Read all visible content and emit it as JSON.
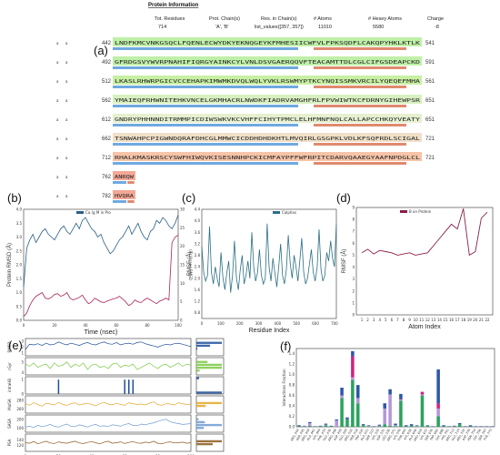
{
  "panel_labels": {
    "a": "(a)",
    "b": "(b)",
    "c": "(c)",
    "d": "(d)",
    "e": "(e)",
    "f": "(f)"
  },
  "protein_info": {
    "title": "Protein Information",
    "headers": [
      "Tot. Residues",
      "Prot. Chain(s)",
      "Res. in Chain(s)",
      "# Atoms",
      "# Heavy Atoms",
      "Charge"
    ],
    "values": [
      "714",
      "'A', 'B'",
      "list_values([357, 357])",
      "11010",
      "5580",
      "-8"
    ],
    "row_start_numbers": [
      "442",
      "492",
      "512",
      "562",
      "612",
      "662",
      "712",
      "762",
      "782"
    ],
    "row_end_numbers": [
      "541",
      "591",
      "561",
      "651",
      "651",
      "721",
      "721",
      "781",
      "781"
    ],
    "row_prefix": "a"
  },
  "chart_data": [
    {
      "id": "b",
      "type": "line",
      "legend": "Cα /g M in Pro",
      "xlabel": "Time (nsec)",
      "ylabel": "Protein RMSD (Å)",
      "ylabel_right": "(Å) Ligand RMSD",
      "xlim": [
        0,
        100
      ],
      "ylim": [
        0.0,
        4.0
      ],
      "ylim_right": [
        0,
        30
      ],
      "xticks": [
        "0",
        "20",
        "40",
        "60",
        "80",
        "100"
      ],
      "yticks": [
        "0.0",
        "0.5",
        "1.0",
        "1.5",
        "2.0",
        "2.5",
        "3.0",
        "3.5",
        "4.0"
      ],
      "yticks_right": [
        "0",
        "5",
        "10",
        "15",
        "20",
        "25",
        "30"
      ],
      "series": [
        {
          "values": [
            1.2,
            2.6,
            2.9,
            3.1,
            2.8,
            3.0,
            3.2,
            3.3,
            3.1,
            3.0,
            2.9,
            3.1,
            3.3,
            3.4,
            3.2,
            3.1,
            3.3,
            3.5,
            3.3,
            3.6,
            3.7,
            3.5,
            3.3,
            3.2,
            3.0,
            3.1,
            2.8,
            2.6,
            2.4,
            2.5,
            2.7,
            2.9,
            3.0,
            3.2,
            3.4,
            3.1,
            3.3,
            3.5,
            3.2,
            3.0,
            2.9,
            3.2,
            3.3,
            3.6,
            3.5,
            3.7,
            3.6,
            3.4,
            3.3,
            3.5,
            3.8
          ]
        },
        {
          "values": [
            1.0,
            2.0,
            4.0,
            5.5,
            6.5,
            7.0,
            7.5,
            6.0,
            5.8,
            6.2,
            7.0,
            7.2,
            6.5,
            6.8,
            7.5,
            6.0,
            5.5,
            5.8,
            6.2,
            6.8,
            5.5,
            4.5,
            5.0,
            6.0,
            5.5,
            5.0,
            4.8,
            5.2,
            5.5,
            5.8,
            6.0,
            6.5,
            5.8,
            5.0,
            4.0,
            4.5,
            5.5,
            5.0,
            4.8,
            5.5,
            6.0,
            5.5,
            5.0,
            4.5,
            5.2,
            5.5,
            6.0,
            5.5,
            21.0,
            22.5,
            23.0
          ]
        }
      ]
    },
    {
      "id": "c",
      "type": "line",
      "legend": "Calphas",
      "xlabel": "Residue Index",
      "ylabel": "RMSF (Å)",
      "xlim": [
        0,
        710
      ],
      "ylim": [
        0.6,
        4.4
      ],
      "xticks": [
        "0",
        "100",
        "200",
        "300",
        "400",
        "500",
        "600",
        "700"
      ],
      "yticks": [
        "0.8",
        "1.2",
        "1.6",
        "2.0",
        "2.4",
        "2.8",
        "3.2",
        "3.6",
        "4.0",
        "4.4"
      ],
      "series": [
        {
          "values": [
            3.1,
            2.2,
            1.9,
            2.1,
            3.8,
            2.2,
            1.8,
            2.4,
            2.0,
            1.7,
            2.9,
            2.0,
            1.6,
            2.2,
            2.6,
            1.5,
            2.1,
            3.3,
            2.0,
            1.6,
            2.3,
            2.8,
            1.8,
            2.1,
            2.6,
            2.0,
            3.6,
            2.4,
            1.9,
            2.2,
            3.0,
            2.1,
            1.8,
            2.0,
            3.9,
            2.4,
            1.9,
            2.7,
            2.2,
            1.7,
            2.4,
            3.2,
            2.1,
            1.8,
            2.3,
            3.5,
            2.5,
            2.0,
            2.8,
            2.4,
            1.9,
            2.6,
            3.4,
            2.2,
            1.8,
            2.0,
            2.5,
            3.0,
            2.2,
            1.9,
            2.4,
            3.7,
            2.3,
            1.9,
            2.1,
            2.9,
            2.6,
            3.3,
            2.7,
            2.4,
            3.9
          ]
        }
      ]
    },
    {
      "id": "d",
      "type": "line",
      "legend": "B on Protein",
      "xlabel": "Atom Index",
      "ylabel": "RMSF (Å)",
      "ylim": [
        0,
        9
      ],
      "categories": [
        "1",
        "2",
        "3",
        "4",
        "5",
        "6",
        "7",
        "8",
        "9",
        "10",
        "11",
        "12",
        "13",
        "14",
        "15",
        "16",
        "17",
        "18",
        "19",
        "20",
        "21",
        "22"
      ],
      "yticks": [
        "0",
        "1",
        "2",
        "3",
        "4",
        "5",
        "6",
        "7",
        "8",
        "9"
      ],
      "series": [
        {
          "values": [
            5.2,
            5.5,
            5.1,
            5.4,
            5.3,
            5.2,
            5.0,
            5.1,
            5.2,
            5.0,
            5.1,
            5.2,
            5.8,
            6.4,
            7.0,
            7.6,
            7.2,
            8.9,
            5.0,
            5.3,
            8.1,
            8.6
          ]
        }
      ]
    },
    {
      "id": "e",
      "type": "line",
      "xlim": [
        0,
        100
      ],
      "xticks": [
        "0",
        "20",
        "40",
        "60",
        "80",
        "100"
      ],
      "subplots": [
        {
          "ylabel": "RMSD",
          "yticks": [
            "1",
            "2",
            "3"
          ],
          "ylim": [
            0.5,
            3.5
          ],
          "color": "#1f4e9a",
          "values": [
            1.6,
            2.5,
            2.4,
            2.6,
            2.3,
            2.7,
            2.4,
            2.5,
            2.9,
            2.6,
            2.4,
            2.7,
            2.5,
            2.3,
            2.6,
            2.8,
            2.5,
            2.4,
            2.7,
            2.9,
            2.6,
            2.5,
            2.8,
            2.4,
            2.6,
            2.7,
            2.5,
            2.8,
            2.9,
            2.6,
            2.4,
            2.2,
            2.0,
            2.3,
            2.5,
            2.4,
            2.6,
            2.7,
            2.5,
            2.3,
            2.1
          ]
        },
        {
          "ylabel": "rGyr",
          "yticks": [
            "4",
            "5"
          ],
          "ylim": [
            3.8,
            5.4
          ],
          "color": "#7ac943",
          "values": [
            4.8,
            4.6,
            4.9,
            4.5,
            4.7,
            4.8,
            4.4,
            4.9,
            4.6,
            4.7,
            5.0,
            4.5,
            4.8,
            4.6,
            4.9,
            4.3,
            4.7,
            4.8,
            4.5,
            4.6,
            4.4,
            4.8,
            4.9,
            4.5,
            4.7,
            4.6,
            4.8,
            4.3,
            4.5,
            4.7,
            4.9,
            4.6,
            4.4,
            4.7,
            4.8,
            4.5,
            4.7,
            4.9,
            4.6,
            4.8,
            4.7
          ]
        },
        {
          "ylabel": "intraHB",
          "yticks": [
            "0",
            "1"
          ],
          "ylim": [
            0,
            1.2
          ],
          "color": "#1f4e9a",
          "values": [
            0,
            0,
            0,
            0,
            0,
            0,
            0,
            0,
            1,
            0,
            0,
            0,
            0,
            0,
            0,
            0,
            0,
            0,
            0,
            0,
            0,
            0,
            0,
            0,
            1,
            1,
            1,
            0,
            0,
            0,
            0,
            0,
            0,
            0,
            0,
            0,
            0,
            0,
            0,
            0,
            0
          ]
        },
        {
          "ylabel": "MolSA",
          "yticks": [
            "260",
            "280"
          ],
          "ylim": [
            250,
            290
          ],
          "color": "#e3a82b",
          "values": [
            272,
            268,
            274,
            270,
            266,
            273,
            271,
            269,
            275,
            270,
            268,
            272,
            274,
            269,
            271,
            273,
            270,
            267,
            272,
            275,
            271,
            269,
            273,
            270,
            268,
            274,
            272,
            270,
            271,
            269,
            273,
            276,
            270,
            268,
            272,
            271,
            269,
            274,
            272,
            270,
            271
          ]
        },
        {
          "ylabel": "SASA",
          "yticks": [
            "100",
            "200"
          ],
          "ylim": [
            50,
            250
          ],
          "color": "#6f9bd1",
          "values": [
            110,
            120,
            105,
            130,
            115,
            125,
            140,
            120,
            110,
            130,
            145,
            120,
            115,
            135,
            125,
            110,
            130,
            140,
            120,
            125,
            115,
            135,
            130,
            120,
            140,
            150,
            130,
            125,
            145,
            135,
            150,
            160,
            175,
            190,
            200,
            170,
            160,
            150,
            140,
            145,
            150
          ]
        },
        {
          "ylabel": "PSA",
          "yticks": [
            "120",
            "140"
          ],
          "ylim": [
            100,
            160
          ],
          "color": "#8a5a1e",
          "values": [
            130,
            128,
            134,
            126,
            131,
            135,
            129,
            127,
            133,
            130,
            128,
            132,
            135,
            129,
            127,
            131,
            134,
            130,
            126,
            132,
            135,
            128,
            130,
            133,
            127,
            131,
            134,
            129,
            128,
            132,
            130,
            135,
            128,
            126,
            131,
            133,
            129,
            130,
            132,
            128,
            130
          ]
        }
      ]
    },
    {
      "id": "f",
      "type": "bar",
      "ylabel": "Interactions Fraction",
      "ylim": [
        0,
        1.5
      ],
      "yticks": [
        "0.0",
        "0.2",
        "0.4",
        "0.6",
        "0.8",
        "1.0",
        "1.2",
        "1.4"
      ],
      "categories": [
        "ARG_444",
        "SER_445",
        "ARG_459",
        "ALA_462",
        "LYS_469",
        "PHE_474",
        "GLU_476",
        "ARG_498",
        "ASP_499",
        "GLU_509",
        "ARG_516",
        "SER_518",
        "TRP_520",
        "ALA_521",
        "SER_522",
        "LYS_525",
        "ASP_531",
        "LEU_536",
        "ARG_571",
        "LYS_576",
        "THR_604",
        "LYS_628",
        "ALA_656",
        "ARG_659",
        "LYS_672",
        "SER_676",
        "TRP_683",
        "GLY_688",
        "HIS_701",
        "ARG_713",
        "GLU_719",
        "ARG_720",
        "ASP_739",
        "ASN_754",
        "GLY_756",
        "SER_767",
        "TYR_773"
      ],
      "series": [
        {
          "name": "H-bonds",
          "color": "#2ca25f",
          "values": [
            0.01,
            0,
            0.02,
            0,
            0.01,
            0.03,
            0.01,
            0,
            0.55,
            0.15,
            0.9,
            0.45,
            0.03,
            0.01,
            0,
            0.01,
            0.05,
            0.02,
            0.01,
            0.5,
            0.01,
            0.02,
            0.01,
            0.6,
            0.02,
            0,
            0.2,
            0.01,
            0,
            0.01,
            0.05,
            0,
            0.01,
            0,
            0,
            0,
            0
          ]
        },
        {
          "name": "Hydrophobic",
          "color": "#b497d6",
          "values": [
            0,
            0.01,
            0.05,
            0,
            0,
            0.01,
            0,
            0.12,
            0.05,
            0,
            0.05,
            0.1,
            0,
            0.01,
            0,
            0.01,
            0.3,
            0.6,
            0.02,
            0.02,
            0,
            0,
            0.01,
            0.02,
            0,
            0,
            0.15,
            0,
            0,
            0,
            0,
            0,
            0,
            0,
            0,
            0,
            0
          ]
        },
        {
          "name": "Ionic",
          "color": "#d1227d",
          "values": [
            0,
            0,
            0,
            0,
            0,
            0,
            0,
            0,
            0,
            0,
            0.4,
            0,
            0,
            0,
            0,
            0,
            0,
            0,
            0,
            0.01,
            0,
            0,
            0,
            0.05,
            0,
            0,
            0.1,
            0,
            0,
            0,
            0,
            0,
            0,
            0,
            0,
            0,
            0
          ]
        },
        {
          "name": "Water bridges",
          "color": "#2f57a8",
          "values": [
            0.02,
            0.01,
            0.02,
            0.01,
            0.01,
            0.02,
            0.01,
            0.02,
            0.15,
            0.03,
            0.1,
            0.25,
            0.02,
            0.01,
            0.01,
            0.02,
            0.1,
            0.1,
            0.03,
            0.1,
            0.02,
            0.03,
            0.01,
            0.0,
            0.01,
            0.01,
            0.65,
            0.02,
            0.01,
            0.01,
            0.02,
            0.01,
            0.02,
            0.01,
            0.01,
            0.01,
            0.01
          ]
        }
      ]
    }
  ]
}
